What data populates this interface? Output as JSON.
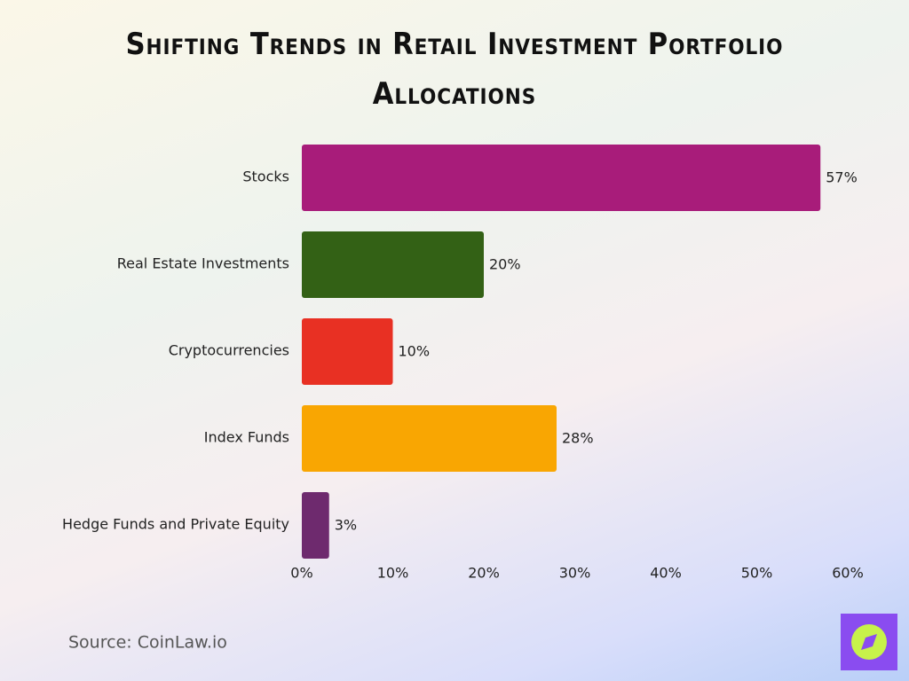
{
  "chart_data": {
    "type": "bar",
    "orientation": "horizontal",
    "title": "Shifting Trends in Retail Investment Portfolio Allocations",
    "categories": [
      "Stocks",
      "Real Estate Investments",
      "Cryptocurrencies",
      "Index Funds",
      "Hedge Funds and Private Equity"
    ],
    "values": [
      57,
      20,
      10,
      28,
      3
    ],
    "value_labels": [
      "57%",
      "20%",
      "10%",
      "28%",
      "3%"
    ],
    "colors": [
      "#a81c7a",
      "#336115",
      "#e83023",
      "#f9a602",
      "#6e2a6e"
    ],
    "xlim": [
      0,
      60
    ],
    "xticks": [
      {
        "value": 0,
        "label": "0%"
      },
      {
        "value": 10,
        "label": "10%"
      },
      {
        "value": 20,
        "label": "20%"
      },
      {
        "value": 30,
        "label": "30%"
      },
      {
        "value": 40,
        "label": "40%"
      },
      {
        "value": 50,
        "label": "50%"
      },
      {
        "value": 60,
        "label": "60%"
      }
    ],
    "grid": false,
    "source": "Source: CoinLaw.io"
  }
}
